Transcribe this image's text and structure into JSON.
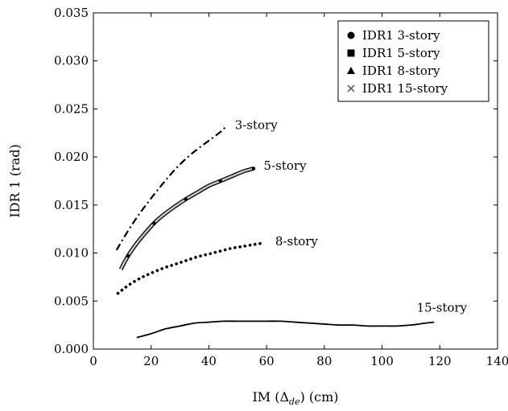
{
  "chart_data": {
    "type": "line",
    "xlabel_prefix": "IM (",
    "xlabel_symbol": "Δ",
    "xlabel_sub": "de",
    "xlabel_suffix": ") (cm)",
    "ylabel": "IDR 1 (rad)",
    "xlim": [
      0,
      140
    ],
    "ylim": [
      0,
      0.035
    ],
    "x_ticks": [
      0,
      20,
      40,
      60,
      80,
      100,
      120,
      140
    ],
    "x_tick_labels": [
      "0",
      "20",
      "40",
      "60",
      "80",
      "100",
      "120",
      "140"
    ],
    "y_ticks": [
      0,
      0.005,
      0.01,
      0.015,
      0.02,
      0.025,
      0.03,
      0.035
    ],
    "y_tick_labels": [
      "0.000",
      "0.005",
      "0.010",
      "0.015",
      "0.020",
      "0.025",
      "0.030",
      "0.035"
    ],
    "grid": false,
    "legend_position": "top-right",
    "series": [
      {
        "name": "IDR1 3-story",
        "marker": "circle",
        "style": "dashdot",
        "label": "3-story",
        "x": [
          8,
          12,
          16,
          20,
          24,
          28,
          32,
          36,
          40,
          44,
          46
        ],
        "y": [
          0.0103,
          0.0123,
          0.0141,
          0.0157,
          0.0172,
          0.0186,
          0.0198,
          0.0208,
          0.0217,
          0.0226,
          0.0232
        ]
      },
      {
        "name": "IDR1 5-story",
        "marker": "square",
        "style": "double",
        "label": "5-story",
        "x": [
          9.5,
          12,
          15,
          18,
          21,
          24,
          28,
          32,
          36,
          40,
          44,
          48,
          52,
          55.5
        ],
        "y": [
          0.0083,
          0.0097,
          0.011,
          0.0121,
          0.0131,
          0.0139,
          0.0148,
          0.0156,
          0.0163,
          0.017,
          0.0175,
          0.018,
          0.0185,
          0.0188
        ]
      },
      {
        "name": "IDR1 8-story",
        "marker": "triangle",
        "style": "dotted",
        "label": "8-story",
        "x": [
          8.5,
          11,
          14,
          17,
          20,
          24,
          28,
          32,
          36,
          40,
          44,
          48,
          52,
          56,
          58
        ],
        "y": [
          0.0058,
          0.0064,
          0.007,
          0.0075,
          0.0079,
          0.0084,
          0.0088,
          0.0092,
          0.0096,
          0.0099,
          0.0102,
          0.0105,
          0.0107,
          0.0109,
          0.011
        ]
      },
      {
        "name": "IDR1 15-story",
        "marker": "cross",
        "style": "solid",
        "label": "15-story",
        "x": [
          15,
          20,
          25,
          30,
          35,
          40,
          45,
          50,
          55,
          60,
          65,
          70,
          75,
          80,
          85,
          90,
          95,
          100,
          105,
          110,
          115,
          118
        ],
        "y": [
          0.0012,
          0.0016,
          0.0021,
          0.0024,
          0.0027,
          0.0028,
          0.0029,
          0.0029,
          0.0029,
          0.0029,
          0.0029,
          0.0028,
          0.0027,
          0.0026,
          0.0025,
          0.0025,
          0.0024,
          0.0024,
          0.0024,
          0.0025,
          0.0027,
          0.0028
        ]
      }
    ],
    "annotations": [
      {
        "text": "3-story",
        "x": 49,
        "y": 0.0233
      },
      {
        "text": "5-story",
        "x": 59,
        "y": 0.0191
      },
      {
        "text": "8-story",
        "x": 63,
        "y": 0.0112
      },
      {
        "text": "15-story",
        "x": 112,
        "y": 0.0043
      }
    ]
  }
}
